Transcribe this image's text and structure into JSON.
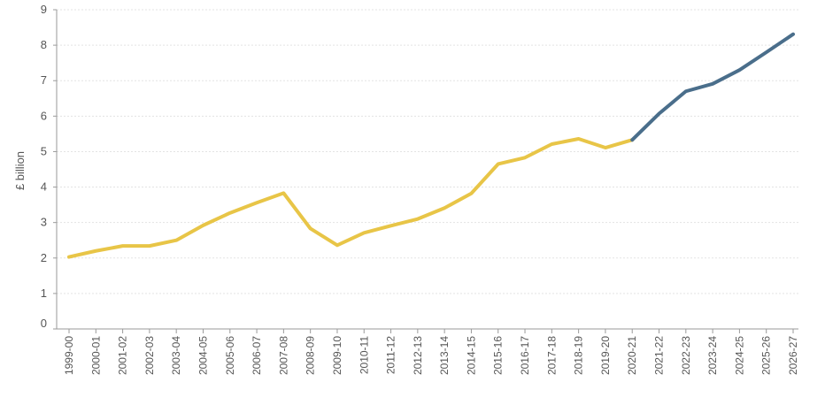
{
  "chart_data": {
    "type": "line",
    "title": "",
    "xlabel": "",
    "ylabel": "£ billion",
    "ylim": [
      0,
      9
    ],
    "yticks": [
      "0",
      "1",
      "2",
      "3",
      "4",
      "5",
      "6",
      "7",
      "8",
      "9"
    ],
    "grid": true,
    "categories": [
      "1999-00",
      "2000-01",
      "2001-02",
      "2002-03",
      "2003-04",
      "2004-05",
      "2005-06",
      "2006-07",
      "2007-08",
      "2008-09",
      "2009-10",
      "2010-11",
      "2011-12",
      "2012-13",
      "2013-14",
      "2014-15",
      "2015-16",
      "2016-17",
      "2017-18",
      "2018-19",
      "2019-20",
      "2020-21",
      "2021-22",
      "2022-23",
      "2023-24",
      "2024-25",
      "2025-26",
      "2026-27"
    ],
    "series": [
      {
        "color": "#E8C547",
        "values": [
          2.03,
          2.2,
          2.34,
          2.34,
          2.5,
          2.92,
          3.27,
          3.56,
          3.83,
          2.83,
          2.36,
          2.71,
          2.91,
          3.1,
          3.41,
          3.82,
          4.65,
          4.83,
          5.21,
          5.36,
          5.11,
          5.33,
          null,
          null,
          null,
          null,
          null,
          null
        ]
      },
      {
        "color": "#4A6E8B",
        "values": [
          null,
          null,
          null,
          null,
          null,
          null,
          null,
          null,
          null,
          null,
          null,
          null,
          null,
          null,
          null,
          null,
          null,
          null,
          null,
          null,
          null,
          5.33,
          6.07,
          6.7,
          6.91,
          7.3,
          7.8,
          8.31
        ]
      }
    ]
  }
}
